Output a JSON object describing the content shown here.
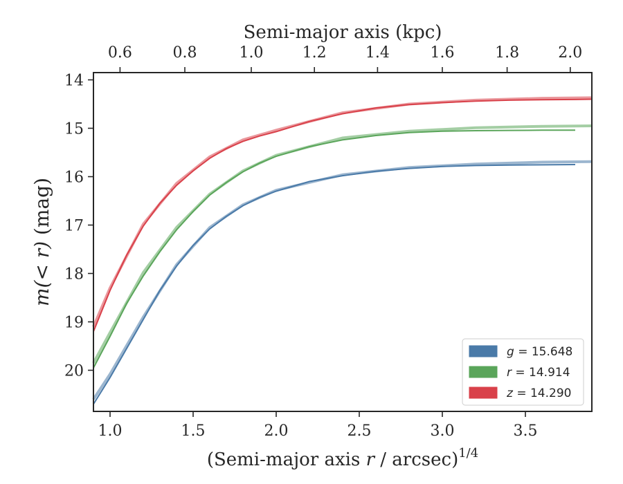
{
  "chart_data": {
    "type": "line",
    "title": "",
    "xlabel_top": "Semi-major axis (kpc)",
    "xlabel_bottom": {
      "text": "(Semi-major axis ",
      "var": "r",
      "text_after": " / arcsec)",
      "superscript": "1/4"
    },
    "ylabel": {
      "prefix": "m",
      "middle": "(< r)",
      "suffix": " (mag)"
    },
    "xlim": [
      0.9,
      3.9
    ],
    "ylim": [
      20.85,
      13.85
    ],
    "y_inverted": true,
    "x_ticks": [
      1.0,
      1.5,
      2.0,
      2.5,
      3.0,
      3.5
    ],
    "x_tick_labels": [
      "1.0",
      "1.5",
      "2.0",
      "2.5",
      "3.0",
      "3.5"
    ],
    "y_ticks": [
      14,
      15,
      16,
      17,
      18,
      19,
      20
    ],
    "y_tick_labels": [
      "14",
      "15",
      "16",
      "17",
      "18",
      "19",
      "20"
    ],
    "top_axis": {
      "ticks_kpc": [
        0.6,
        0.8,
        1.0,
        1.2,
        1.4,
        1.6,
        1.8,
        2.0
      ],
      "tick_labels": [
        "0.6",
        "0.8",
        "1.0",
        "1.2",
        "1.4",
        "1.6",
        "1.8",
        "2.0"
      ],
      "secondary_x_ticks": [
        1.06,
        1.45,
        1.85,
        2.23,
        2.61,
        3.0,
        3.39,
        3.77
      ]
    },
    "grid": false,
    "legend_position": "lower-right",
    "series": [
      {
        "name": "g = 15.648",
        "band": "g",
        "value": "15.648",
        "color": "#4a7aa8",
        "x": [
          0.9,
          1.0,
          1.1,
          1.2,
          1.3,
          1.4,
          1.5,
          1.6,
          1.7,
          1.8,
          1.9,
          2.0,
          2.2,
          2.4,
          2.6,
          2.8,
          3.0,
          3.2,
          3.4,
          3.6,
          3.8
        ],
        "y": [
          20.7,
          20.15,
          19.55,
          18.95,
          18.35,
          17.85,
          17.42,
          17.08,
          16.82,
          16.6,
          16.43,
          16.3,
          16.1,
          15.98,
          15.89,
          15.83,
          15.79,
          15.77,
          15.76,
          15.755,
          15.75
        ],
        "model_x": [
          0.9,
          1.0,
          1.2,
          1.4,
          1.6,
          1.8,
          2.0,
          2.4,
          2.8,
          3.2,
          3.6,
          3.9
        ],
        "model_y": [
          20.6,
          20.08,
          18.9,
          17.82,
          17.05,
          16.58,
          16.28,
          15.96,
          15.81,
          15.74,
          15.7,
          15.69
        ]
      },
      {
        "name": "r = 14.914",
        "band": "r",
        "value": "14.914",
        "color": "#5aa55a",
        "x": [
          0.9,
          1.0,
          1.1,
          1.2,
          1.3,
          1.4,
          1.5,
          1.6,
          1.7,
          1.8,
          1.9,
          2.0,
          2.2,
          2.4,
          2.6,
          2.8,
          3.0,
          3.2,
          3.4,
          3.6,
          3.8
        ],
        "y": [
          19.95,
          19.3,
          18.62,
          18.05,
          17.55,
          17.1,
          16.72,
          16.38,
          16.12,
          15.9,
          15.72,
          15.58,
          15.38,
          15.24,
          15.15,
          15.09,
          15.06,
          15.05,
          15.045,
          15.04,
          15.04
        ],
        "model_x": [
          0.9,
          1.0,
          1.2,
          1.4,
          1.6,
          1.8,
          2.0,
          2.4,
          2.8,
          3.2,
          3.6,
          3.9
        ],
        "model_y": [
          19.85,
          19.22,
          17.98,
          17.05,
          16.36,
          15.88,
          15.56,
          15.2,
          15.06,
          14.99,
          14.96,
          14.95
        ]
      },
      {
        "name": "z = 14.290",
        "band": "z",
        "value": "14.290",
        "color": "#d9414a",
        "x": [
          0.9,
          1.0,
          1.1,
          1.2,
          1.3,
          1.4,
          1.5,
          1.6,
          1.7,
          1.8,
          1.9,
          2.0,
          2.2,
          2.4,
          2.6,
          2.8,
          3.0,
          3.2,
          3.4,
          3.6,
          3.8,
          3.9
        ],
        "y": [
          19.2,
          18.35,
          17.62,
          17.02,
          16.55,
          16.18,
          15.88,
          15.62,
          15.42,
          15.27,
          15.16,
          15.07,
          14.86,
          14.7,
          14.58,
          14.51,
          14.47,
          14.44,
          14.42,
          14.41,
          14.405,
          14.4
        ],
        "model_x": [
          0.9,
          1.0,
          1.2,
          1.4,
          1.6,
          1.8,
          2.0,
          2.4,
          2.8,
          3.2,
          3.6,
          3.9
        ],
        "model_y": [
          19.1,
          18.3,
          16.98,
          16.14,
          15.59,
          15.24,
          15.04,
          14.68,
          14.5,
          14.42,
          14.38,
          14.37
        ]
      }
    ]
  }
}
